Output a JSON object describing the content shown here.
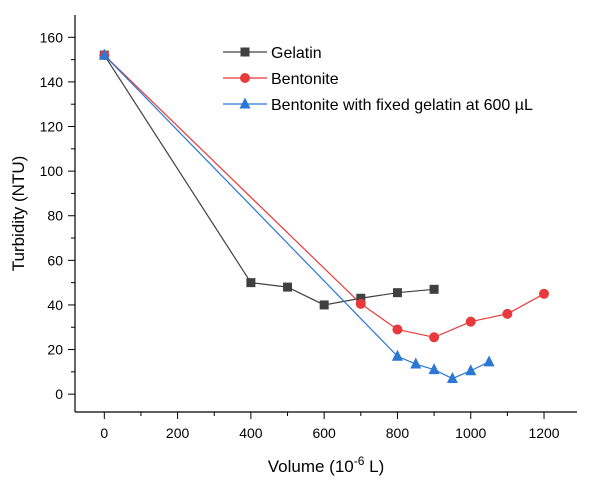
{
  "chart_data": {
    "type": "line",
    "xlabel": {
      "main": "Volume (10",
      "sup": "-6",
      "tail": " L)"
    },
    "ylabel": "Turbidity (NTU)",
    "xlim": [
      -80,
      1290
    ],
    "ylim": [
      -8,
      170
    ],
    "x_ticks": [
      0,
      200,
      400,
      600,
      800,
      1000,
      1200
    ],
    "y_ticks": [
      0,
      20,
      40,
      60,
      80,
      100,
      120,
      140,
      160
    ],
    "legend_position": "top-right",
    "grid": false,
    "series": [
      {
        "name": "Gelatin",
        "color": "#404040",
        "marker": "square",
        "x": [
          0,
          400,
          500,
          600,
          700,
          800,
          900
        ],
        "y": [
          152,
          50,
          48,
          40,
          43,
          45.5,
          47
        ]
      },
      {
        "name": "Bentonite",
        "color": "#e83a3a",
        "marker": "circle",
        "x": [
          0,
          700,
          800,
          900,
          1000,
          1100,
          1200
        ],
        "y": [
          152,
          40.5,
          29,
          25.5,
          32.5,
          36,
          45
        ]
      },
      {
        "name": "Bentonite with fixed gelatin at 600 µL",
        "color": "#2b77d4",
        "marker": "triangle",
        "x": [
          0,
          800,
          850,
          900,
          950,
          1000,
          1050
        ],
        "y": [
          152,
          17,
          13.5,
          11,
          7,
          10.5,
          14.5
        ]
      }
    ]
  }
}
